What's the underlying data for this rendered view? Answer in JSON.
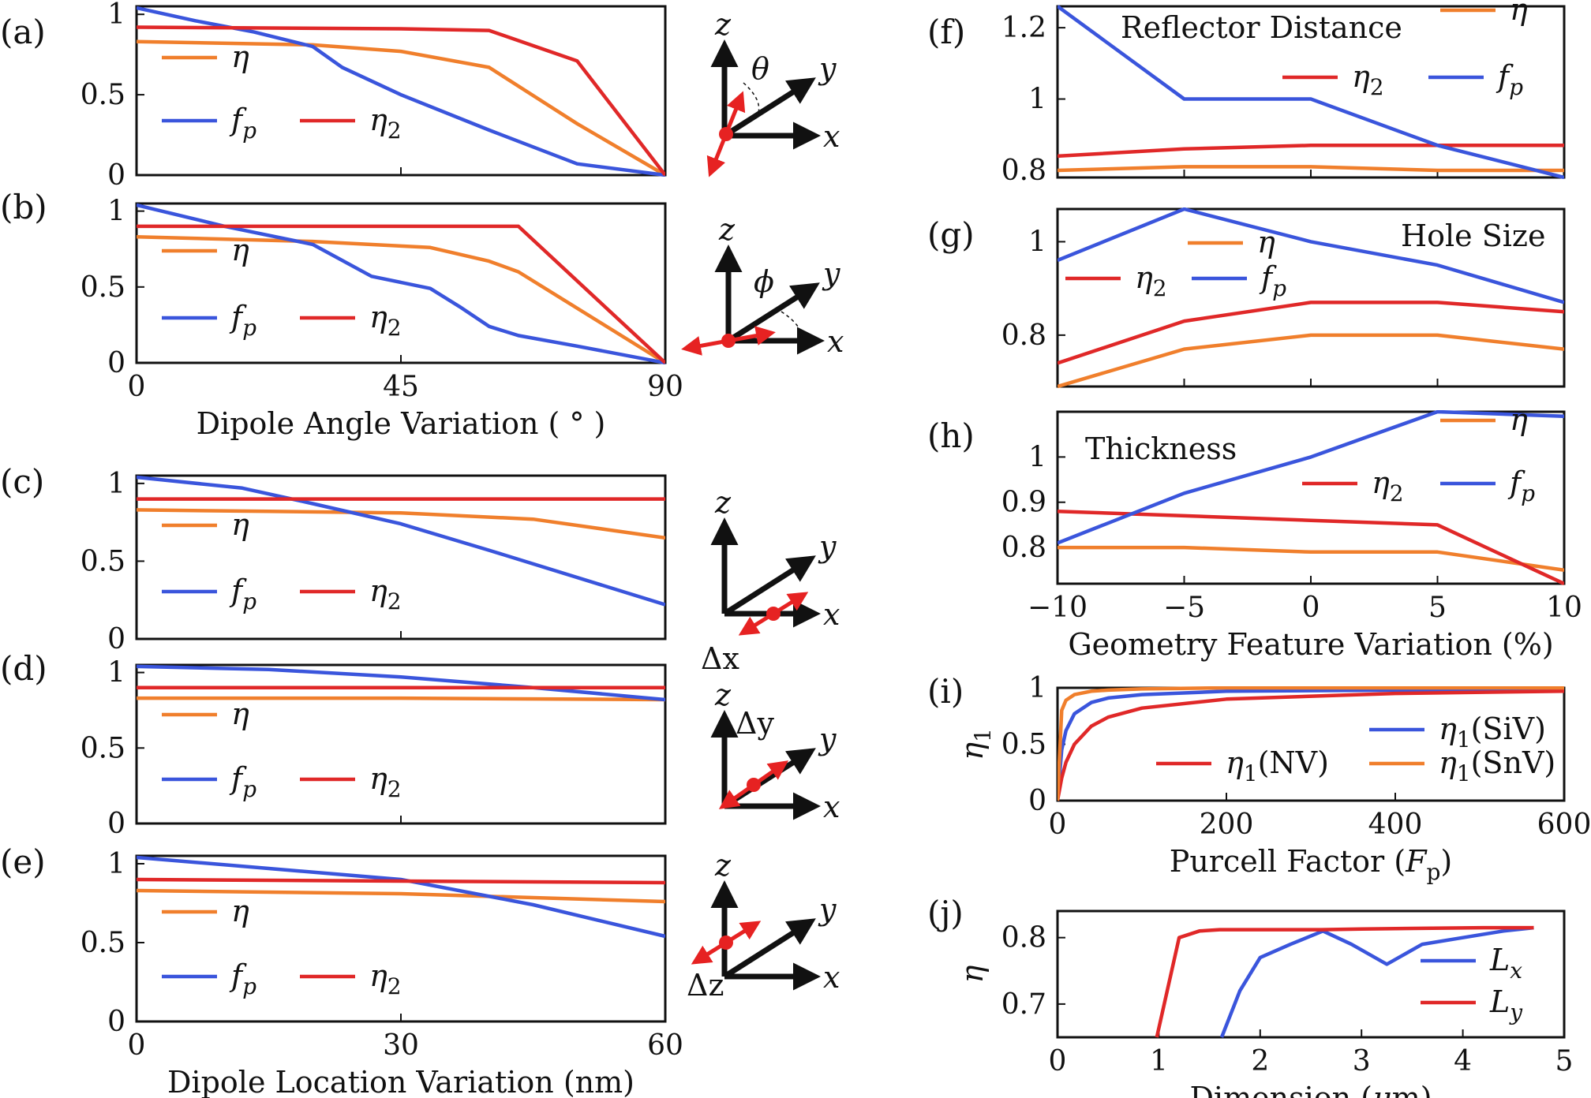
{
  "colors": {
    "eta": "#f07f2c",
    "eta2": "#e02828",
    "fp": "#3a55dc",
    "axis": "#111111",
    "arrow": "#e62222"
  },
  "chart_data": [
    {
      "id": "a",
      "panel_label": "(a)",
      "type": "line",
      "x": [
        0,
        10,
        20,
        30,
        35,
        45,
        55,
        60,
        70,
        75,
        80,
        90
      ],
      "xlim": [
        0,
        90
      ],
      "ylim": [
        0,
        1.05
      ],
      "yticks": [
        "0",
        "0.5",
        "1"
      ],
      "series": [
        {
          "key": "eta",
          "name": "η",
          "x": [
            0,
            30,
            45,
            60,
            75,
            90
          ],
          "values": [
            0.83,
            0.81,
            0.77,
            0.67,
            0.32,
            0
          ]
        },
        {
          "key": "fp",
          "name": "fp",
          "x": [
            0,
            10,
            20,
            30,
            35,
            45,
            60,
            75,
            90
          ],
          "values": [
            1.04,
            0.96,
            0.89,
            0.8,
            0.67,
            0.5,
            0.28,
            0.07,
            0
          ]
        },
        {
          "key": "eta2",
          "name": "η2",
          "x": [
            0,
            45,
            60,
            75,
            90
          ],
          "values": [
            0.92,
            0.91,
            0.9,
            0.71,
            0
          ]
        }
      ],
      "legend": "left",
      "dipole_sketch": "θ"
    },
    {
      "id": "b",
      "panel_label": "(b)",
      "type": "line",
      "xlim": [
        0,
        90
      ],
      "ylim": [
        0,
        1.05
      ],
      "yticks": [
        "0",
        "0.5",
        "1"
      ],
      "xticks": [
        "0",
        "45",
        "90"
      ],
      "xlabel": "Dipole Angle Variation ( ° )",
      "series": [
        {
          "key": "eta",
          "name": "η",
          "x": [
            0,
            30,
            45,
            50,
            60,
            65,
            90
          ],
          "values": [
            0.83,
            0.8,
            0.77,
            0.76,
            0.67,
            0.6,
            0
          ]
        },
        {
          "key": "fp",
          "name": "fp",
          "x": [
            0,
            15,
            30,
            40,
            50,
            55,
            60,
            65,
            75,
            90
          ],
          "values": [
            1.04,
            0.9,
            0.78,
            0.57,
            0.49,
            0.37,
            0.24,
            0.18,
            0.11,
            0
          ]
        },
        {
          "key": "eta2",
          "name": "η2",
          "x": [
            0,
            60,
            65,
            90
          ],
          "values": [
            0.9,
            0.9,
            0.9,
            0
          ]
        }
      ],
      "dipole_sketch": "ϕ"
    },
    {
      "id": "c",
      "panel_label": "(c)",
      "type": "line",
      "xlim": [
        0,
        60
      ],
      "ylim": [
        0,
        1.05
      ],
      "yticks": [
        "0",
        "0.5",
        "1"
      ],
      "series": [
        {
          "key": "eta",
          "name": "η",
          "x": [
            0,
            15,
            30,
            45,
            60
          ],
          "values": [
            0.83,
            0.82,
            0.81,
            0.77,
            0.65
          ]
        },
        {
          "key": "fp",
          "name": "fp",
          "x": [
            0,
            12,
            20,
            30,
            40,
            60
          ],
          "values": [
            1.04,
            0.97,
            0.87,
            0.74,
            0.57,
            0.22
          ]
        },
        {
          "key": "eta2",
          "name": "η2",
          "x": [
            0,
            60
          ],
          "values": [
            0.9,
            0.9
          ]
        }
      ],
      "dipole_sketch": "Δx"
    },
    {
      "id": "d",
      "panel_label": "(d)",
      "type": "line",
      "xlim": [
        0,
        60
      ],
      "ylim": [
        0,
        1.05
      ],
      "yticks": [
        "0",
        "0.5",
        "1"
      ],
      "series": [
        {
          "key": "eta",
          "name": "η",
          "x": [
            0,
            30,
            60
          ],
          "values": [
            0.83,
            0.83,
            0.82
          ]
        },
        {
          "key": "fp",
          "name": "fp",
          "x": [
            0,
            15,
            30,
            45,
            60
          ],
          "values": [
            1.04,
            1.02,
            0.97,
            0.9,
            0.82
          ]
        },
        {
          "key": "eta2",
          "name": "η2",
          "x": [
            0,
            60
          ],
          "values": [
            0.9,
            0.9
          ]
        }
      ],
      "dipole_sketch": "Δy"
    },
    {
      "id": "e",
      "panel_label": "(e)",
      "type": "line",
      "xlim": [
        0,
        60
      ],
      "ylim": [
        0,
        1.05
      ],
      "yticks": [
        "0",
        "0.5",
        "1"
      ],
      "xticks": [
        "0",
        "30",
        "60"
      ],
      "xlabel": "Dipole Location Variation (nm)",
      "series": [
        {
          "key": "eta",
          "name": "η",
          "x": [
            0,
            30,
            60
          ],
          "values": [
            0.83,
            0.81,
            0.76
          ]
        },
        {
          "key": "fp",
          "name": "fp",
          "x": [
            0,
            15,
            30,
            45,
            60
          ],
          "values": [
            1.04,
            0.97,
            0.9,
            0.74,
            0.54
          ]
        },
        {
          "key": "eta2",
          "name": "η2",
          "x": [
            0,
            30,
            60
          ],
          "values": [
            0.9,
            0.89,
            0.88
          ]
        }
      ],
      "dipole_sketch": "Δz"
    },
    {
      "id": "f",
      "panel_label": "(f)",
      "type": "line",
      "annotation": "Reflector Distance",
      "xlim": [
        -10,
        10
      ],
      "ylim": [
        0.78,
        1.26
      ],
      "yticks": [
        "0.8",
        "1",
        "1.2"
      ],
      "series": [
        {
          "key": "eta",
          "name": "η",
          "x": [
            -10,
            -5,
            0,
            5,
            10
          ],
          "values": [
            0.8,
            0.81,
            0.81,
            0.8,
            0.8
          ]
        },
        {
          "key": "eta2",
          "name": "η2",
          "x": [
            -10,
            -5,
            0,
            5,
            10
          ],
          "values": [
            0.84,
            0.86,
            0.87,
            0.87,
            0.87
          ]
        },
        {
          "key": "fp",
          "name": "fp",
          "x": [
            -10,
            -5,
            0,
            5,
            10
          ],
          "values": [
            1.26,
            1.0,
            1.0,
            0.87,
            0.78
          ]
        }
      ]
    },
    {
      "id": "g",
      "panel_label": "(g)",
      "type": "line",
      "annotation": "Hole Size",
      "xlim": [
        -10,
        10
      ],
      "ylim": [
        0.69,
        1.07
      ],
      "yticks": [
        "0.8",
        "1"
      ],
      "series": [
        {
          "key": "eta",
          "name": "η",
          "x": [
            -10,
            -5,
            0,
            5,
            10
          ],
          "values": [
            0.69,
            0.77,
            0.8,
            0.8,
            0.77
          ]
        },
        {
          "key": "eta2",
          "name": "η2",
          "x": [
            -10,
            -5,
            0,
            5,
            10
          ],
          "values": [
            0.74,
            0.83,
            0.87,
            0.87,
            0.85
          ]
        },
        {
          "key": "fp",
          "name": "fp",
          "x": [
            -10,
            -5,
            0,
            5,
            10
          ],
          "values": [
            0.96,
            1.07,
            1.0,
            0.95,
            0.87
          ]
        }
      ]
    },
    {
      "id": "h",
      "panel_label": "(h)",
      "type": "line",
      "annotation": "Thickness",
      "xlim": [
        -10,
        10
      ],
      "ylim": [
        0.72,
        1.1
      ],
      "yticks": [
        "0.8",
        "0.9",
        "1"
      ],
      "xticks": [
        "−10",
        "−5",
        "0",
        "5",
        "10"
      ],
      "xlabel": "Geometry Feature Variation (%)",
      "series": [
        {
          "key": "eta",
          "name": "η",
          "x": [
            -10,
            -5,
            0,
            5,
            10
          ],
          "values": [
            0.8,
            0.8,
            0.79,
            0.79,
            0.75
          ]
        },
        {
          "key": "eta2",
          "name": "η2",
          "x": [
            -10,
            -5,
            0,
            5,
            10
          ],
          "values": [
            0.88,
            0.87,
            0.86,
            0.85,
            0.72
          ]
        },
        {
          "key": "fp",
          "name": "fp",
          "x": [
            -10,
            -5,
            0,
            5,
            10
          ],
          "values": [
            0.81,
            0.92,
            1.0,
            1.1,
            1.09
          ]
        }
      ]
    },
    {
      "id": "i",
      "panel_label": "(i)",
      "type": "line",
      "xlim": [
        0,
        600
      ],
      "ylim": [
        0,
        1
      ],
      "yticks": [
        "0",
        "0.5",
        "1"
      ],
      "xticks": [
        "0",
        "200",
        "400",
        "600"
      ],
      "xlabel": "Purcell Factor (Fp)",
      "ylabel": "η1",
      "series": [
        {
          "key": "sv",
          "name": "η1(SiV)",
          "color_key": "fp",
          "x": [
            0,
            5,
            10,
            20,
            40,
            60,
            100,
            200,
            400,
            600
          ],
          "values": [
            0,
            0.45,
            0.62,
            0.77,
            0.87,
            0.91,
            0.94,
            0.97,
            0.98,
            0.99
          ]
        },
        {
          "key": "nv",
          "name": "η1(NV)",
          "color_key": "eta2",
          "x": [
            0,
            5,
            10,
            20,
            40,
            60,
            100,
            200,
            400,
            600
          ],
          "values": [
            0,
            0.2,
            0.34,
            0.5,
            0.66,
            0.74,
            0.82,
            0.9,
            0.95,
            0.97
          ]
        },
        {
          "key": "sn",
          "name": "η1(SnV)",
          "color_key": "eta",
          "x": [
            0,
            5,
            10,
            20,
            40,
            60,
            100,
            200,
            400,
            600
          ],
          "values": [
            0,
            0.8,
            0.89,
            0.94,
            0.97,
            0.98,
            0.99,
            1.0,
            1.0,
            1.0
          ]
        }
      ]
    },
    {
      "id": "j",
      "panel_label": "(j)",
      "type": "line",
      "xlim": [
        0,
        5
      ],
      "ylim": [
        0.65,
        0.84
      ],
      "yticks": [
        "0.7",
        "0.8"
      ],
      "xticks": [
        "0",
        "1",
        "2",
        "3",
        "4",
        "5"
      ],
      "xlabel": "Dimension (μm)",
      "ylabel": "η",
      "series": [
        {
          "key": "lx",
          "name": "Lx",
          "color_key": "fp",
          "x": [
            1.62,
            1.8,
            2.0,
            2.3,
            2.62,
            2.9,
            3.25,
            3.6,
            4.0,
            4.4,
            4.7
          ],
          "values": [
            0.65,
            0.72,
            0.77,
            0.79,
            0.81,
            0.79,
            0.76,
            0.79,
            0.8,
            0.81,
            0.815
          ]
        },
        {
          "key": "ly",
          "name": "Ly",
          "color_key": "eta2",
          "x": [
            0.98,
            1.2,
            1.4,
            1.6,
            2.0,
            2.2,
            2.6,
            3.0,
            3.6,
            4.2,
            4.7
          ],
          "values": [
            0.65,
            0.8,
            0.81,
            0.812,
            0.812,
            0.812,
            0.812,
            0.813,
            0.814,
            0.815,
            0.815
          ]
        }
      ]
    }
  ]
}
